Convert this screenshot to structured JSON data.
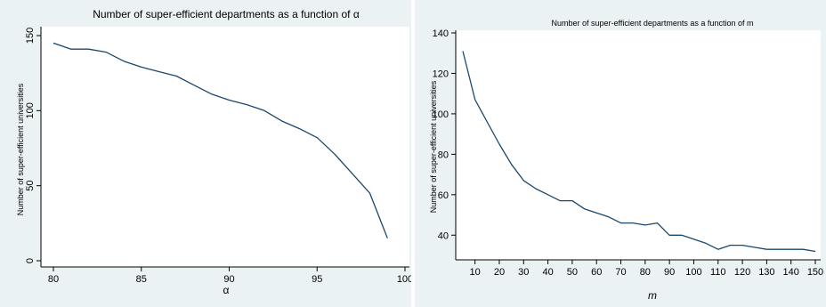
{
  "colors": {
    "background": "#eaf2f3",
    "plot_background": "#ffffff",
    "line": "#1a476f"
  },
  "chart_data": [
    {
      "type": "line",
      "title": "Number of super-efficient departments as a function of α",
      "xlabel": "α",
      "ylabel": "Number of super-efficient universities",
      "xlim": [
        80,
        100
      ],
      "ylim": [
        0,
        150
      ],
      "xticks": [
        80,
        85,
        90,
        95,
        100
      ],
      "yticks": [
        0,
        50,
        100,
        150
      ],
      "grid": false,
      "series": [
        {
          "x": [
            80,
            81,
            82,
            83,
            84,
            85,
            86,
            87,
            88,
            89,
            90,
            91,
            92,
            93,
            94,
            95,
            96,
            97,
            98,
            99
          ],
          "y": [
            145,
            141,
            141,
            139,
            133,
            129,
            126,
            123,
            117,
            111,
            107,
            104,
            100,
            93,
            88,
            82,
            71,
            58,
            45,
            15
          ]
        }
      ]
    },
    {
      "type": "line",
      "title": "Number of super-efficient departments as a function of m",
      "xlabel": "m",
      "ylabel": "Number of super-efficient universities",
      "xlim": [
        5,
        150
      ],
      "ylim": [
        30,
        140
      ],
      "xticks": [
        10,
        20,
        30,
        40,
        50,
        60,
        70,
        80,
        90,
        100,
        110,
        120,
        130,
        140,
        150
      ],
      "yticks": [
        40,
        60,
        80,
        100,
        120,
        140
      ],
      "grid": false,
      "series": [
        {
          "x": [
            5,
            10,
            15,
            20,
            25,
            30,
            35,
            40,
            45,
            50,
            55,
            60,
            65,
            70,
            75,
            80,
            85,
            90,
            95,
            100,
            105,
            110,
            115,
            120,
            125,
            130,
            135,
            140,
            145,
            150
          ],
          "y": [
            131,
            107,
            96,
            85,
            75,
            67,
            63,
            60,
            57,
            57,
            53,
            51,
            49,
            46,
            46,
            45,
            46,
            40,
            40,
            38,
            36,
            33,
            35,
            35,
            34,
            33,
            33,
            33,
            33,
            32
          ]
        }
      ]
    }
  ]
}
